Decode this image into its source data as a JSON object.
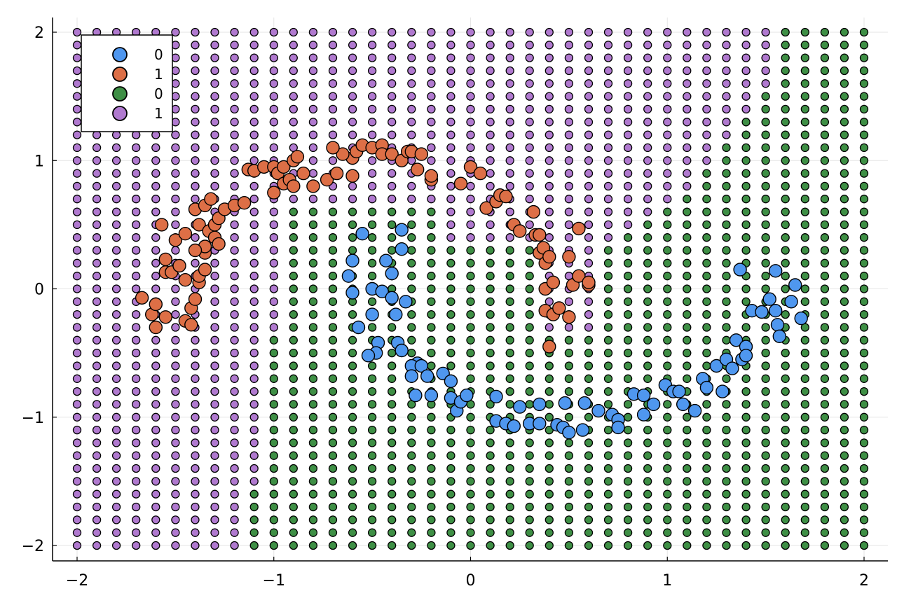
{
  "chart_data": {
    "type": "scatter",
    "title": "",
    "xlabel": "",
    "ylabel": "",
    "xlim": [
      -2.1,
      2.12
    ],
    "ylim": [
      -2.12,
      2.12
    ],
    "xticks": [
      -2,
      -1,
      0,
      1,
      2
    ],
    "yticks": [
      -2,
      -1,
      0,
      1,
      2
    ],
    "xtick_labels": [
      "−2",
      "−1",
      "0",
      "1",
      "2"
    ],
    "ytick_labels": [
      "−2",
      "−1",
      "0",
      "1",
      "2"
    ],
    "grid": true,
    "legend_position": "top-left",
    "grid_points": {
      "range": [
        -2,
        2
      ],
      "step": 0.1,
      "description": "Decision-boundary grid: each point on a 41x41 lattice is colored by predicted class (green = 0, purple = 1)."
    },
    "series": [
      {
        "name": "0",
        "color": "#4f97ef",
        "points": [
          [
            -0.55,
            0.43
          ],
          [
            -0.35,
            0.46
          ],
          [
            -0.35,
            0.31
          ],
          [
            -0.6,
            0.22
          ],
          [
            -0.43,
            0.22
          ],
          [
            -0.4,
            0.12
          ],
          [
            -0.62,
            0.1
          ],
          [
            -0.6,
            -0.03
          ],
          [
            -0.5,
            0.0
          ],
          [
            -0.45,
            -0.02
          ],
          [
            -0.4,
            -0.07
          ],
          [
            -0.33,
            -0.1
          ],
          [
            -0.5,
            -0.2
          ],
          [
            -0.38,
            -0.2
          ],
          [
            -0.57,
            -0.3
          ],
          [
            -0.47,
            -0.42
          ],
          [
            -0.37,
            -0.42
          ],
          [
            -0.48,
            -0.5
          ],
          [
            -0.52,
            -0.52
          ],
          [
            -0.35,
            -0.48
          ],
          [
            -0.27,
            -0.58
          ],
          [
            -0.3,
            -0.6
          ],
          [
            -0.25,
            -0.6
          ],
          [
            -0.3,
            -0.68
          ],
          [
            -0.22,
            -0.68
          ],
          [
            -0.14,
            -0.66
          ],
          [
            -0.1,
            -0.72
          ],
          [
            -0.28,
            -0.83
          ],
          [
            -0.2,
            -0.83
          ],
          [
            -0.1,
            -0.85
          ],
          [
            -0.07,
            -0.95
          ],
          [
            -0.05,
            -0.88
          ],
          [
            -0.02,
            -0.83
          ],
          [
            0.13,
            -0.84
          ],
          [
            0.25,
            -0.92
          ],
          [
            0.35,
            -0.9
          ],
          [
            0.48,
            -0.89
          ],
          [
            0.58,
            -0.89
          ],
          [
            0.65,
            -0.95
          ],
          [
            0.72,
            -0.98
          ],
          [
            0.75,
            -1.02
          ],
          [
            0.13,
            -1.03
          ],
          [
            0.18,
            -1.05
          ],
          [
            0.22,
            -1.07
          ],
          [
            0.3,
            -1.05
          ],
          [
            0.35,
            -1.05
          ],
          [
            0.44,
            -1.06
          ],
          [
            0.47,
            -1.08
          ],
          [
            0.5,
            -1.12
          ],
          [
            0.57,
            -1.1
          ],
          [
            0.75,
            -1.08
          ],
          [
            0.83,
            -0.82
          ],
          [
            0.88,
            -0.83
          ],
          [
            0.88,
            -0.98
          ],
          [
            0.93,
            -0.9
          ],
          [
            0.99,
            -0.75
          ],
          [
            1.03,
            -0.8
          ],
          [
            1.06,
            -0.8
          ],
          [
            1.08,
            -0.9
          ],
          [
            1.14,
            -0.95
          ],
          [
            1.18,
            -0.7
          ],
          [
            1.2,
            -0.77
          ],
          [
            1.25,
            -0.6
          ],
          [
            1.28,
            -0.8
          ],
          [
            1.3,
            -0.55
          ],
          [
            1.33,
            -0.62
          ],
          [
            1.35,
            -0.4
          ],
          [
            1.38,
            -0.55
          ],
          [
            1.4,
            -0.45
          ],
          [
            1.4,
            -0.52
          ],
          [
            1.37,
            0.15
          ],
          [
            1.43,
            -0.17
          ],
          [
            1.48,
            -0.18
          ],
          [
            1.52,
            -0.08
          ],
          [
            1.55,
            -0.17
          ],
          [
            1.56,
            -0.28
          ],
          [
            1.57,
            -0.37
          ],
          [
            1.63,
            -0.1
          ],
          [
            1.65,
            0.03
          ],
          [
            1.68,
            -0.23
          ],
          [
            1.55,
            0.14
          ]
        ]
      },
      {
        "name": "1",
        "color": "#dd6f46",
        "points": [
          [
            -1.67,
            -0.07
          ],
          [
            -1.62,
            -0.2
          ],
          [
            -1.6,
            -0.3
          ],
          [
            -1.6,
            -0.12
          ],
          [
            -1.55,
            -0.22
          ],
          [
            -1.55,
            0.13
          ],
          [
            -1.52,
            0.13
          ],
          [
            -1.55,
            0.23
          ],
          [
            -1.57,
            0.5
          ],
          [
            -1.5,
            0.38
          ],
          [
            -1.45,
            0.43
          ],
          [
            -1.48,
            0.18
          ],
          [
            -1.45,
            0.07
          ],
          [
            -1.42,
            -0.15
          ],
          [
            -1.45,
            -0.25
          ],
          [
            -1.42,
            -0.28
          ],
          [
            -1.4,
            -0.08
          ],
          [
            -1.38,
            0.05
          ],
          [
            -1.38,
            0.1
          ],
          [
            -1.35,
            0.15
          ],
          [
            -1.35,
            0.28
          ],
          [
            -1.35,
            0.33
          ],
          [
            -1.4,
            0.3
          ],
          [
            -1.38,
            0.5
          ],
          [
            -1.33,
            0.45
          ],
          [
            -1.3,
            0.4
          ],
          [
            -1.28,
            0.35
          ],
          [
            -1.3,
            0.5
          ],
          [
            -1.28,
            0.55
          ],
          [
            -1.4,
            0.62
          ],
          [
            -1.35,
            0.65
          ],
          [
            -1.32,
            0.7
          ],
          [
            -1.25,
            0.62
          ],
          [
            -1.2,
            0.65
          ],
          [
            -1.15,
            0.67
          ],
          [
            -1.13,
            0.93
          ],
          [
            -1.1,
            0.92
          ],
          [
            -1.05,
            0.95
          ],
          [
            -1.0,
            0.95
          ],
          [
            -1.0,
            0.75
          ],
          [
            -0.98,
            0.9
          ],
          [
            -0.95,
            0.95
          ],
          [
            -0.95,
            0.82
          ],
          [
            -0.92,
            0.85
          ],
          [
            -0.9,
            0.8
          ],
          [
            -0.9,
            1.0
          ],
          [
            -0.88,
            1.03
          ],
          [
            -0.85,
            0.9
          ],
          [
            -0.8,
            0.8
          ],
          [
            -0.73,
            0.85
          ],
          [
            -0.68,
            0.9
          ],
          [
            -0.6,
            0.88
          ],
          [
            -0.6,
            1.02
          ],
          [
            -0.58,
            1.07
          ],
          [
            -0.55,
            1.12
          ],
          [
            -0.5,
            1.1
          ],
          [
            -0.45,
            1.12
          ],
          [
            -0.45,
            1.05
          ],
          [
            -0.4,
            1.05
          ],
          [
            -0.35,
            1.0
          ],
          [
            -0.32,
            1.07
          ],
          [
            -0.3,
            1.07
          ],
          [
            -0.27,
            0.93
          ],
          [
            -0.25,
            1.05
          ],
          [
            -0.2,
            0.85
          ],
          [
            -0.2,
            0.88
          ],
          [
            -0.65,
            1.05
          ],
          [
            -0.7,
            1.1
          ],
          [
            0.0,
            0.95
          ],
          [
            0.05,
            0.9
          ],
          [
            0.08,
            0.63
          ],
          [
            -0.05,
            0.82
          ],
          [
            0.13,
            0.68
          ],
          [
            0.15,
            0.73
          ],
          [
            0.18,
            0.72
          ],
          [
            0.22,
            0.5
          ],
          [
            0.25,
            0.45
          ],
          [
            0.32,
            0.6
          ],
          [
            0.33,
            0.42
          ],
          [
            0.35,
            0.42
          ],
          [
            0.35,
            0.28
          ],
          [
            0.37,
            0.32
          ],
          [
            0.38,
            0.2
          ],
          [
            0.4,
            0.25
          ],
          [
            0.38,
            0.0
          ],
          [
            0.42,
            0.05
          ],
          [
            0.38,
            -0.17
          ],
          [
            0.42,
            -0.2
          ],
          [
            0.45,
            -0.15
          ],
          [
            0.4,
            -0.45
          ],
          [
            0.5,
            0.25
          ],
          [
            0.5,
            -0.22
          ],
          [
            0.52,
            0.03
          ],
          [
            0.55,
            0.1
          ],
          [
            0.55,
            0.47
          ],
          [
            0.6,
            0.03
          ],
          [
            0.6,
            0.05
          ]
        ]
      },
      {
        "name": "0",
        "color": "#3e8f45",
        "points": []
      },
      {
        "name": "1",
        "color": "#b079cf",
        "points": []
      }
    ]
  },
  "legend": [
    {
      "label": "0",
      "color": "#4f97ef"
    },
    {
      "label": "1",
      "color": "#dd6f46"
    },
    {
      "label": "0",
      "color": "#3e8f45"
    },
    {
      "label": "1",
      "color": "#b079cf"
    }
  ]
}
